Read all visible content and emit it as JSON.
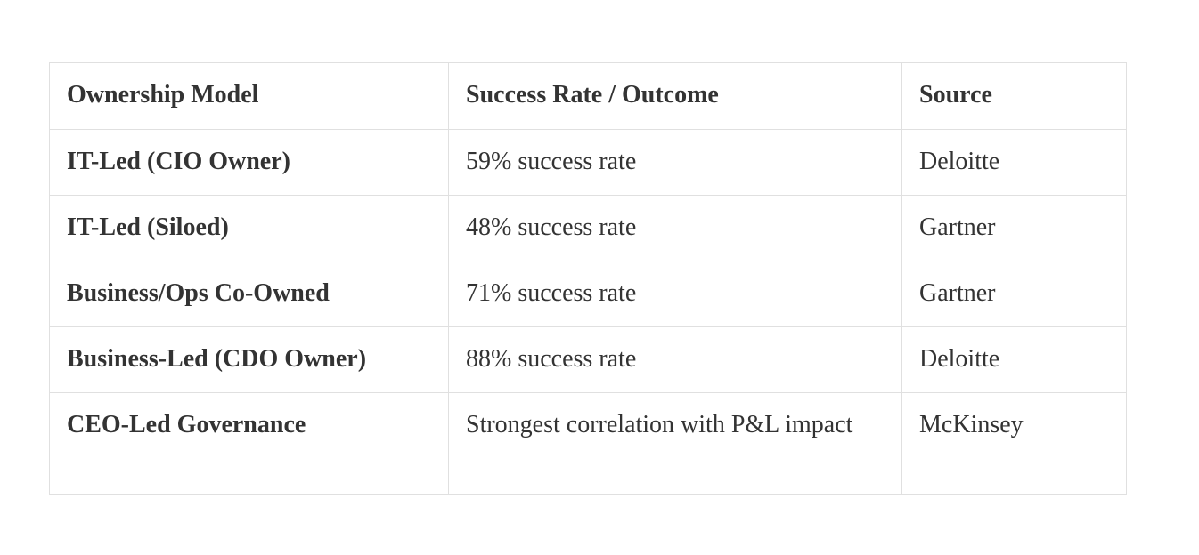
{
  "page": {
    "background_color": "#ffffff"
  },
  "table": {
    "columns": [
      "Ownership Model",
      "Success Rate / Outcome",
      "Source"
    ],
    "rows": [
      {
        "model": "IT-Led (CIO Owner)",
        "outcome": "59% success rate",
        "source": "Deloitte"
      },
      {
        "model": "IT-Led (Siloed)",
        "outcome": "48% success rate",
        "source": "Gartner"
      },
      {
        "model": "Business/Ops Co-Owned",
        "outcome": "71% success rate",
        "source": "Gartner"
      },
      {
        "model": "Business-Led (CDO Owner)",
        "outcome": "88% success rate",
        "source": "Deloitte"
      },
      {
        "model": "CEO-Led Governance",
        "outcome": "Strongest correlation with P&L impact",
        "source": "McKinsey"
      }
    ],
    "style": {
      "text_color": "#333333",
      "border_color": "#e0e0e0",
      "header_bold": true,
      "first_column_bold": true
    }
  },
  "chart_data": {
    "type": "table",
    "title": "",
    "columns": [
      "Ownership Model",
      "Success Rate / Outcome",
      "Source"
    ],
    "rows": [
      [
        "IT-Led (CIO Owner)",
        "59% success rate",
        "Deloitte"
      ],
      [
        "IT-Led (Siloed)",
        "48% success rate",
        "Gartner"
      ],
      [
        "Business/Ops Co-Owned",
        "71% success rate",
        "Gartner"
      ],
      [
        "Business-Led (CDO Owner)",
        "88% success rate",
        "Deloitte"
      ],
      [
        "CEO-Led Governance",
        "Strongest correlation with P&L impact",
        "McKinsey"
      ]
    ],
    "success_rates_percent": {
      "IT-Led (CIO Owner)": 59,
      "IT-Led (Siloed)": 48,
      "Business/Ops Co-Owned": 71,
      "Business-Led (CDO Owner)": 88
    }
  }
}
